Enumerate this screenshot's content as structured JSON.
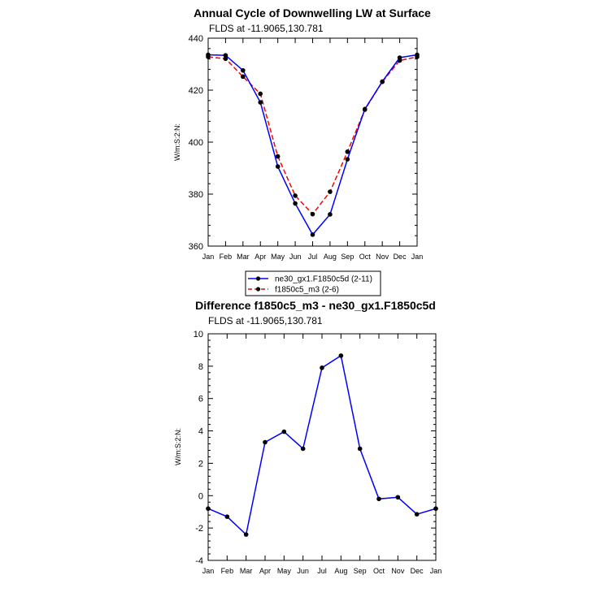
{
  "chart_data": [
    {
      "type": "line",
      "title": "Annual Cycle of Downwelling LW at Surface",
      "subtitle": "FLDS at -11.9065,130.781",
      "ylabel": "W/m:S:2:N:",
      "xlabel": "",
      "ylim": [
        360,
        440
      ],
      "yticks": [
        360,
        380,
        400,
        420,
        440
      ],
      "categories": [
        "Jan",
        "Feb",
        "Mar",
        "Apr",
        "May",
        "Jun",
        "Jul",
        "Aug",
        "Sep",
        "Oct",
        "Nov",
        "Dec",
        "Jan"
      ],
      "grid": false,
      "series": [
        {
          "name": "ne30_gx1.F1850c5d (2-11)",
          "color": "#0000ff",
          "dash": "solid",
          "values": [
            433.6,
            433.4,
            427.6,
            415.3,
            390.6,
            376.4,
            364.4,
            372.2,
            393.4,
            412.7,
            423.3,
            432.5,
            433.6
          ]
        },
        {
          "name": "f1850c5_m3 (2-6)",
          "color": "#ff0000",
          "dash": "dashed",
          "values": [
            432.8,
            432.1,
            425.2,
            418.6,
            394.5,
            379.4,
            372.3,
            380.9,
            396.3,
            412.5,
            423.2,
            431.4,
            432.8
          ]
        }
      ]
    },
    {
      "type": "line",
      "title": "Difference f1850c5_m3 - ne30_gx1.F1850c5d",
      "subtitle": "FLDS at -11.9065,130.781",
      "ylabel": "W/m:S:2:N:",
      "xlabel": "",
      "ylim": [
        -4,
        10
      ],
      "yticks": [
        -4,
        -2,
        0,
        2,
        4,
        6,
        8,
        10
      ],
      "categories": [
        "Jan",
        "Feb",
        "Mar",
        "Apr",
        "May",
        "Jun",
        "Jul",
        "Aug",
        "Sep",
        "Oct",
        "Nov",
        "Dec",
        "Jan"
      ],
      "grid": false,
      "series": [
        {
          "color": "#0000ff",
          "dash": "solid",
          "values": [
            -0.8,
            -1.3,
            -2.4,
            3.3,
            3.95,
            2.9,
            7.9,
            8.65,
            2.9,
            -0.2,
            -0.1,
            -1.15,
            -0.8
          ]
        }
      ]
    }
  ],
  "legend": {
    "entries": [
      "ne30_gx1.F1850c5d (2-11)",
      "f1850c5_m3 (2-6)"
    ]
  }
}
